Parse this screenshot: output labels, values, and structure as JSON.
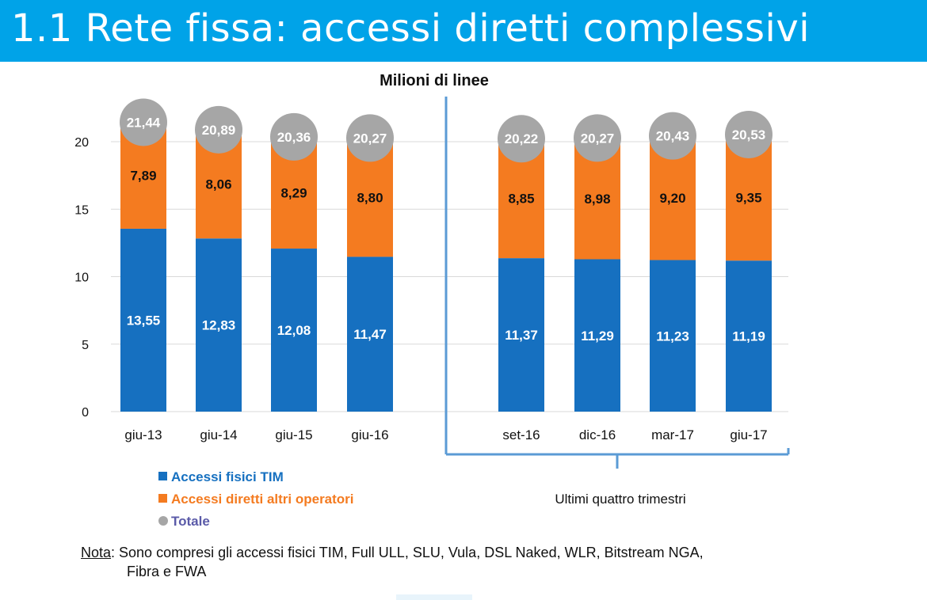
{
  "header": {
    "title": "1.1 Rete fissa: accessi diretti complessivi",
    "background_color": "#00a3e8"
  },
  "chart_data": {
    "type": "bar",
    "stacked": true,
    "title": "Milioni di linee",
    "categories": [
      "giu-13",
      "giu-14",
      "giu-15",
      "giu-16",
      "set-16",
      "dic-16",
      "mar-17",
      "giu-17"
    ],
    "series": [
      {
        "name": "Accessi fisici TIM",
        "color": "#1670c0",
        "values": [
          13.55,
          12.83,
          12.08,
          11.47,
          11.37,
          11.29,
          11.23,
          11.19
        ],
        "labels": [
          "13,55",
          "12,83",
          "12,08",
          "11,47",
          "11,37",
          "11,29",
          "11,23",
          "11,19"
        ]
      },
      {
        "name": "Accessi diretti altri operatori",
        "color": "#f47b20",
        "values": [
          7.89,
          8.06,
          8.29,
          8.8,
          8.85,
          8.98,
          9.2,
          9.35
        ],
        "labels": [
          "7,89",
          "8,06",
          "8,29",
          "8,80",
          "8,85",
          "8,98",
          "9,20",
          "9,35"
        ]
      }
    ],
    "totals": {
      "name": "Totale",
      "color": "#a6a6a6",
      "values": [
        21.44,
        20.89,
        20.36,
        20.27,
        20.22,
        20.27,
        20.43,
        20.53
      ],
      "labels": [
        "21,44",
        "20,89",
        "20,36",
        "20,27",
        "20,22",
        "20,27",
        "20,43",
        "20,53"
      ]
    },
    "ylim": [
      0,
      22
    ],
    "yticks": [
      0,
      5,
      10,
      15,
      20
    ],
    "xlabel": "",
    "ylabel": "",
    "grid": true,
    "legend_position": "bottom-left",
    "bracket_label": "Ultimi quattro trimestri"
  },
  "note": {
    "label": "Nota",
    "text_line1": ": Sono compresi gli accessi fisici TIM, Full ULL, SLU, Vula, DSL Naked, WLR, Bitstream NGA,",
    "text_line2": "Fibra e FWA"
  }
}
